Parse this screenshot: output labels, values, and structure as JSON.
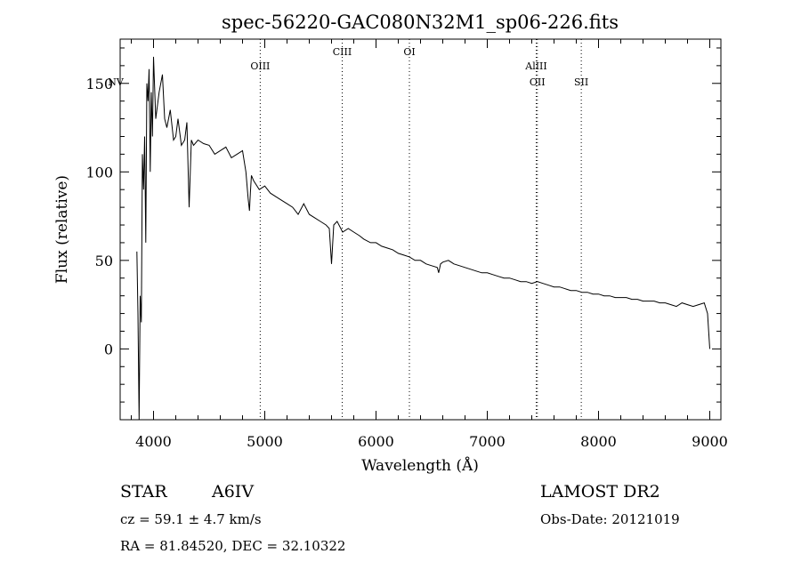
{
  "chart_data": {
    "type": "line",
    "title": "spec-56220-GAC080N32M1_sp06-226.fits",
    "xlabel": "Wavelength (Å)",
    "ylabel": "Flux (relative)",
    "xlim": [
      3700,
      9100
    ],
    "ylim": [
      -40,
      175
    ],
    "xticks": [
      4000,
      5000,
      6000,
      7000,
      8000,
      9000
    ],
    "yticks": [
      0,
      50,
      100,
      150
    ],
    "grid": false,
    "x": [
      3850,
      3860,
      3870,
      3880,
      3890,
      3900,
      3910,
      3920,
      3930,
      3940,
      3950,
      3960,
      3970,
      3980,
      3990,
      4000,
      4020,
      4050,
      4080,
      4100,
      4120,
      4150,
      4180,
      4200,
      4220,
      4250,
      4280,
      4300,
      4320,
      4340,
      4360,
      4400,
      4450,
      4500,
      4550,
      4600,
      4650,
      4700,
      4750,
      4800,
      4830,
      4850,
      4862,
      4870,
      4880,
      4900,
      4950,
      5000,
      5050,
      5100,
      5150,
      5200,
      5250,
      5300,
      5350,
      5400,
      5450,
      5500,
      5550,
      5580,
      5600,
      5620,
      5650,
      5700,
      5750,
      5800,
      5850,
      5890,
      5950,
      6000,
      6050,
      6100,
      6150,
      6200,
      6250,
      6300,
      6350,
      6400,
      6450,
      6500,
      6550,
      6563,
      6580,
      6600,
      6650,
      6700,
      6750,
      6800,
      6850,
      6900,
      6950,
      7000,
      7050,
      7100,
      7150,
      7200,
      7250,
      7300,
      7350,
      7400,
      7450,
      7500,
      7550,
      7600,
      7650,
      7700,
      7750,
      7800,
      7850,
      7900,
      7950,
      8000,
      8050,
      8100,
      8150,
      8200,
      8250,
      8300,
      8350,
      8400,
      8450,
      8500,
      8550,
      8600,
      8650,
      8700,
      8750,
      8800,
      8850,
      8900,
      8950,
      8980,
      9000
    ],
    "y": [
      55,
      20,
      -40,
      30,
      15,
      110,
      90,
      120,
      60,
      150,
      140,
      158,
      100,
      145,
      120,
      165,
      130,
      145,
      155,
      130,
      125,
      135,
      118,
      120,
      130,
      115,
      118,
      128,
      80,
      118,
      115,
      118,
      116,
      115,
      110,
      112,
      114,
      108,
      110,
      112,
      100,
      85,
      78,
      88,
      98,
      95,
      90,
      92,
      88,
      86,
      84,
      82,
      80,
      76,
      82,
      76,
      74,
      72,
      70,
      68,
      48,
      70,
      72,
      66,
      68,
      66,
      64,
      62,
      60,
      60,
      58,
      57,
      56,
      54,
      53,
      52,
      50,
      50,
      48,
      47,
      46,
      43,
      48,
      49,
      50,
      48,
      47,
      46,
      45,
      44,
      43,
      43,
      42,
      41,
      40,
      40,
      39,
      38,
      38,
      37,
      38,
      37,
      36,
      35,
      35,
      34,
      33,
      33,
      32,
      32,
      31,
      31,
      30,
      30,
      29,
      29,
      29,
      28,
      28,
      27,
      27,
      27,
      26,
      26,
      25,
      24,
      26,
      25,
      24,
      25,
      26,
      20,
      0
    ],
    "lines": [
      {
        "label": "NV",
        "wavelength": 3810
      },
      {
        "label": "OIII",
        "wavelength": 4959
      },
      {
        "label": "CIII",
        "wavelength": 5696
      },
      {
        "label": "OI",
        "wavelength": 6300
      },
      {
        "label": "AlIII",
        "wavelength": 7440
      },
      {
        "label": "OII",
        "wavelength": 7450
      },
      {
        "label": "SII",
        "wavelength": 7845
      }
    ]
  },
  "info": {
    "class_label": "STAR",
    "subclass": "A6IV",
    "redshift_text": "cz = 59.1 ± 4.7 km/s",
    "coords_text": "RA =  81.84520, DEC =  32.10322",
    "survey": "LAMOST DR2",
    "obs_date": "Obs-Date: 20121019"
  },
  "colors": {
    "line": "#000000",
    "marker_lines": "#000000",
    "background": "#ffffff"
  }
}
